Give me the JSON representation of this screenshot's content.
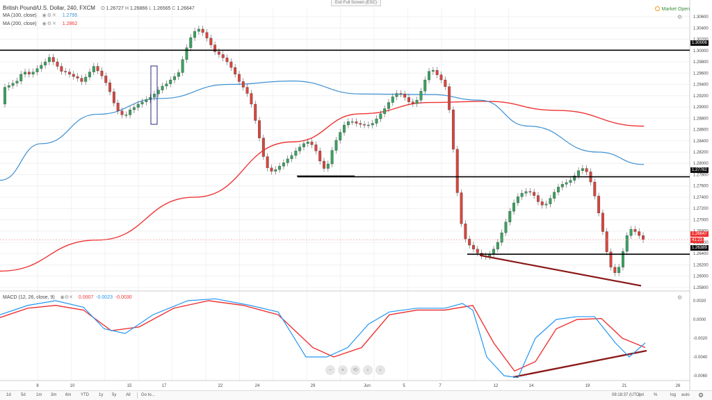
{
  "header": {
    "symbol": "British Pound/U.S. Dollar, 240, FXCM",
    "ohlc": {
      "o_label": "O",
      "o": "1.26727",
      "h_label": "H",
      "h": "1.26866",
      "l_label": "L",
      "l": "1.26565",
      "c_label": "C",
      "c": "1.26647"
    },
    "exit_fullscreen": "Exit Full Screen (ESC)",
    "market_status": "Market Open"
  },
  "indicators": {
    "ma100": {
      "label": "MA (100, close)",
      "value": "1.2795",
      "color": "#3d8fd1"
    },
    "ma200": {
      "label": "MA (200, close)",
      "value": "1.2862",
      "color": "#e33"
    },
    "macd": {
      "label": "MACD (12, 26, close, 9)",
      "v1": "0.0007",
      "v2": "-0.0023",
      "v3": "-0.0030"
    }
  },
  "price_axis": {
    "ticks": [
      "1.30600",
      "1.30400",
      "1.30200",
      "1.30000",
      "1.29800",
      "1.29600",
      "1.29400",
      "1.29200",
      "1.29000",
      "1.28800",
      "1.28600",
      "1.28400",
      "1.28200",
      "1.28000",
      "1.27800",
      "1.27600",
      "1.27400",
      "1.27200",
      "1.27000",
      "1.26800",
      "1.26600",
      "1.26400",
      "1.26200",
      "1.26000",
      "1.25800"
    ],
    "labels": {
      "l1": "1.30006",
      "l2": "1.27762",
      "l3": "1.26389",
      "current": "1.26647",
      "countdown": "41:23"
    }
  },
  "macd_axis": {
    "ticks": [
      "0.0020",
      "0.0000",
      "-0.0020",
      "-0.0040",
      "-0.0060"
    ]
  },
  "time_axis": {
    "ticks": [
      "8",
      "10",
      "15",
      "17",
      "22",
      "24",
      "29",
      "Jun",
      "5",
      "7",
      "12",
      "14",
      "19",
      "21",
      "26"
    ]
  },
  "bottom_bar": {
    "timeframes": [
      "1d",
      "5d",
      "1m",
      "3m",
      "6m",
      "YTD",
      "1y",
      "5y",
      "All",
      "Go to..."
    ],
    "time": "08:18:37 (UTC)",
    "ext": "ext",
    "pct": "%",
    "log": "log",
    "auto": "auto"
  },
  "colors": {
    "up": "#3aa15f",
    "down": "#d7463f",
    "ma100": "#3d8fd1",
    "ma200": "#e33",
    "macd": "#2196f3",
    "signal": "#e33",
    "trend": "#8b1a1a"
  },
  "chart_data": {
    "type": "candlestick",
    "title": "British Pound/U.S. Dollar, 240, FXCM",
    "ylim": [
      1.2575,
      1.3065
    ],
    "candles": [
      [
        1.2905,
        1.2935
      ],
      [
        1.2935,
        1.2938
      ],
      [
        1.2938,
        1.2942
      ],
      [
        1.2942,
        1.2946
      ],
      [
        1.2946,
        1.2958
      ],
      [
        1.2958,
        1.2962
      ],
      [
        1.2962,
        1.2958
      ],
      [
        1.2958,
        1.2962
      ],
      [
        1.2962,
        1.2968
      ],
      [
        1.2968,
        1.2974
      ],
      [
        1.2974,
        1.298
      ],
      [
        1.298,
        1.2988
      ],
      [
        1.2988,
        1.298
      ],
      [
        1.298,
        1.2972
      ],
      [
        1.2972,
        1.2963
      ],
      [
        1.2963,
        1.2962
      ],
      [
        1.2962,
        1.2958
      ],
      [
        1.2958,
        1.2954
      ],
      [
        1.2954,
        1.2951
      ],
      [
        1.2951,
        1.2945
      ],
      [
        1.2945,
        1.2953
      ],
      [
        1.2953,
        1.2962
      ],
      [
        1.2962,
        1.2972
      ],
      [
        1.2972,
        1.2964
      ],
      [
        1.2964,
        1.2955
      ],
      [
        1.2955,
        1.2943
      ],
      [
        1.2943,
        1.2927
      ],
      [
        1.2927,
        1.2907
      ],
      [
        1.2907,
        1.2893
      ],
      [
        1.2893,
        1.2886
      ],
      [
        1.2886,
        1.2886
      ],
      [
        1.2886,
        1.2895
      ],
      [
        1.2895,
        1.2899
      ],
      [
        1.2899,
        1.2905
      ],
      [
        1.2905,
        1.2909
      ],
      [
        1.2909,
        1.2913
      ],
      [
        1.2913,
        1.2917
      ],
      [
        1.2917,
        1.2923
      ],
      [
        1.2923,
        1.293
      ],
      [
        1.293,
        1.2937
      ],
      [
        1.2937,
        1.2941
      ],
      [
        1.2941,
        1.2948
      ],
      [
        1.2948,
        1.2954
      ],
      [
        1.2954,
        1.2961
      ],
      [
        1.2961,
        1.2984
      ],
      [
        1.2984,
        1.3005
      ],
      [
        1.3005,
        1.3023
      ],
      [
        1.3023,
        1.3034
      ],
      [
        1.3034,
        1.3038
      ],
      [
        1.3038,
        1.3032
      ],
      [
        1.3032,
        1.3022
      ],
      [
        1.3022,
        1.301
      ],
      [
        1.301,
        1.2998
      ],
      [
        1.2998,
        1.2993
      ],
      [
        1.2993,
        1.2987
      ],
      [
        1.2987,
        1.298
      ],
      [
        1.298,
        1.297
      ],
      [
        1.297,
        1.2958
      ],
      [
        1.2958,
        1.2945
      ],
      [
        1.2945,
        1.2935
      ],
      [
        1.2935,
        1.2924
      ],
      [
        1.2924,
        1.2905
      ],
      [
        1.2905,
        1.2876
      ],
      [
        1.2876,
        1.2845
      ],
      [
        1.2845,
        1.2812
      ],
      [
        1.2812,
        1.2792
      ],
      [
        1.2792,
        1.2786
      ],
      [
        1.2786,
        1.2789
      ],
      [
        1.2789,
        1.2795
      ],
      [
        1.2795,
        1.2801
      ],
      [
        1.2801,
        1.2808
      ],
      [
        1.2808,
        1.2814
      ],
      [
        1.2814,
        1.2822
      ],
      [
        1.2822,
        1.2829
      ],
      [
        1.2829,
        1.2835
      ],
      [
        1.2835,
        1.2838
      ],
      [
        1.2838,
        1.2833
      ],
      [
        1.2833,
        1.2822
      ],
      [
        1.2822,
        1.2804
      ],
      [
        1.2804,
        1.2791
      ],
      [
        1.2791,
        1.2799
      ],
      [
        1.2799,
        1.2823
      ],
      [
        1.2823,
        1.2841
      ],
      [
        1.2841,
        1.2855
      ],
      [
        1.2855,
        1.2868
      ],
      [
        1.2868,
        1.2874
      ],
      [
        1.2874,
        1.2874
      ],
      [
        1.2874,
        1.2871
      ],
      [
        1.2871,
        1.2869
      ],
      [
        1.2869,
        1.2868
      ],
      [
        1.2868,
        1.2868
      ],
      [
        1.2868,
        1.2871
      ],
      [
        1.2871,
        1.2879
      ],
      [
        1.2879,
        1.2888
      ],
      [
        1.2888,
        1.2897
      ],
      [
        1.2897,
        1.2908
      ],
      [
        1.2908,
        1.2918
      ],
      [
        1.2918,
        1.2924
      ],
      [
        1.2924,
        1.2923
      ],
      [
        1.2923,
        1.2917
      ],
      [
        1.2917,
        1.2909
      ],
      [
        1.2909,
        1.2906
      ],
      [
        1.2906,
        1.2912
      ],
      [
        1.2912,
        1.2928
      ],
      [
        1.2928,
        1.2948
      ],
      [
        1.2948,
        1.2963
      ],
      [
        1.2963,
        1.2965
      ],
      [
        1.2965,
        1.2957
      ],
      [
        1.2957,
        1.2948
      ],
      [
        1.2948,
        1.2936
      ],
      [
        1.2936,
        1.2895
      ],
      [
        1.2895,
        1.2825
      ],
      [
        1.2825,
        1.2748
      ],
      [
        1.2748,
        1.2693
      ],
      [
        1.2693,
        1.2666
      ],
      [
        1.2666,
        1.2655
      ],
      [
        1.2655,
        1.2648
      ],
      [
        1.2648,
        1.2641
      ],
      [
        1.2641,
        1.2636
      ],
      [
        1.2636,
        1.2635
      ],
      [
        1.2635,
        1.2639
      ],
      [
        1.2639,
        1.2648
      ],
      [
        1.2648,
        1.266
      ],
      [
        1.266,
        1.2677
      ],
      [
        1.2677,
        1.2696
      ],
      [
        1.2696,
        1.2715
      ],
      [
        1.2715,
        1.273
      ],
      [
        1.273,
        1.2741
      ],
      [
        1.2741,
        1.2747
      ],
      [
        1.2747,
        1.275
      ],
      [
        1.275,
        1.2749
      ],
      [
        1.2749,
        1.2743
      ],
      [
        1.2743,
        1.2732
      ],
      [
        1.2732,
        1.2726
      ],
      [
        1.2726,
        1.2728
      ],
      [
        1.2728,
        1.2738
      ],
      [
        1.2738,
        1.2749
      ],
      [
        1.2749,
        1.2758
      ],
      [
        1.2758,
        1.2763
      ],
      [
        1.2763,
        1.2766
      ],
      [
        1.2766,
        1.277
      ],
      [
        1.277,
        1.2778
      ],
      [
        1.2778,
        1.2787
      ],
      [
        1.2787,
        1.2791
      ],
      [
        1.2791,
        1.2785
      ],
      [
        1.2785,
        1.2767
      ],
      [
        1.2767,
        1.2742
      ],
      [
        1.2742,
        1.2712
      ],
      [
        1.2712,
        1.2679
      ],
      [
        1.2679,
        1.2643
      ],
      [
        1.2643,
        1.2616
      ],
      [
        1.2616,
        1.2606
      ],
      [
        1.2606,
        1.2616
      ],
      [
        1.2616,
        1.2644
      ],
      [
        1.2644,
        1.2672
      ],
      [
        1.2672,
        1.2683
      ],
      [
        1.2683,
        1.2679
      ],
      [
        1.2679,
        1.2672
      ],
      [
        1.2672,
        1.2665
      ]
    ]
  }
}
